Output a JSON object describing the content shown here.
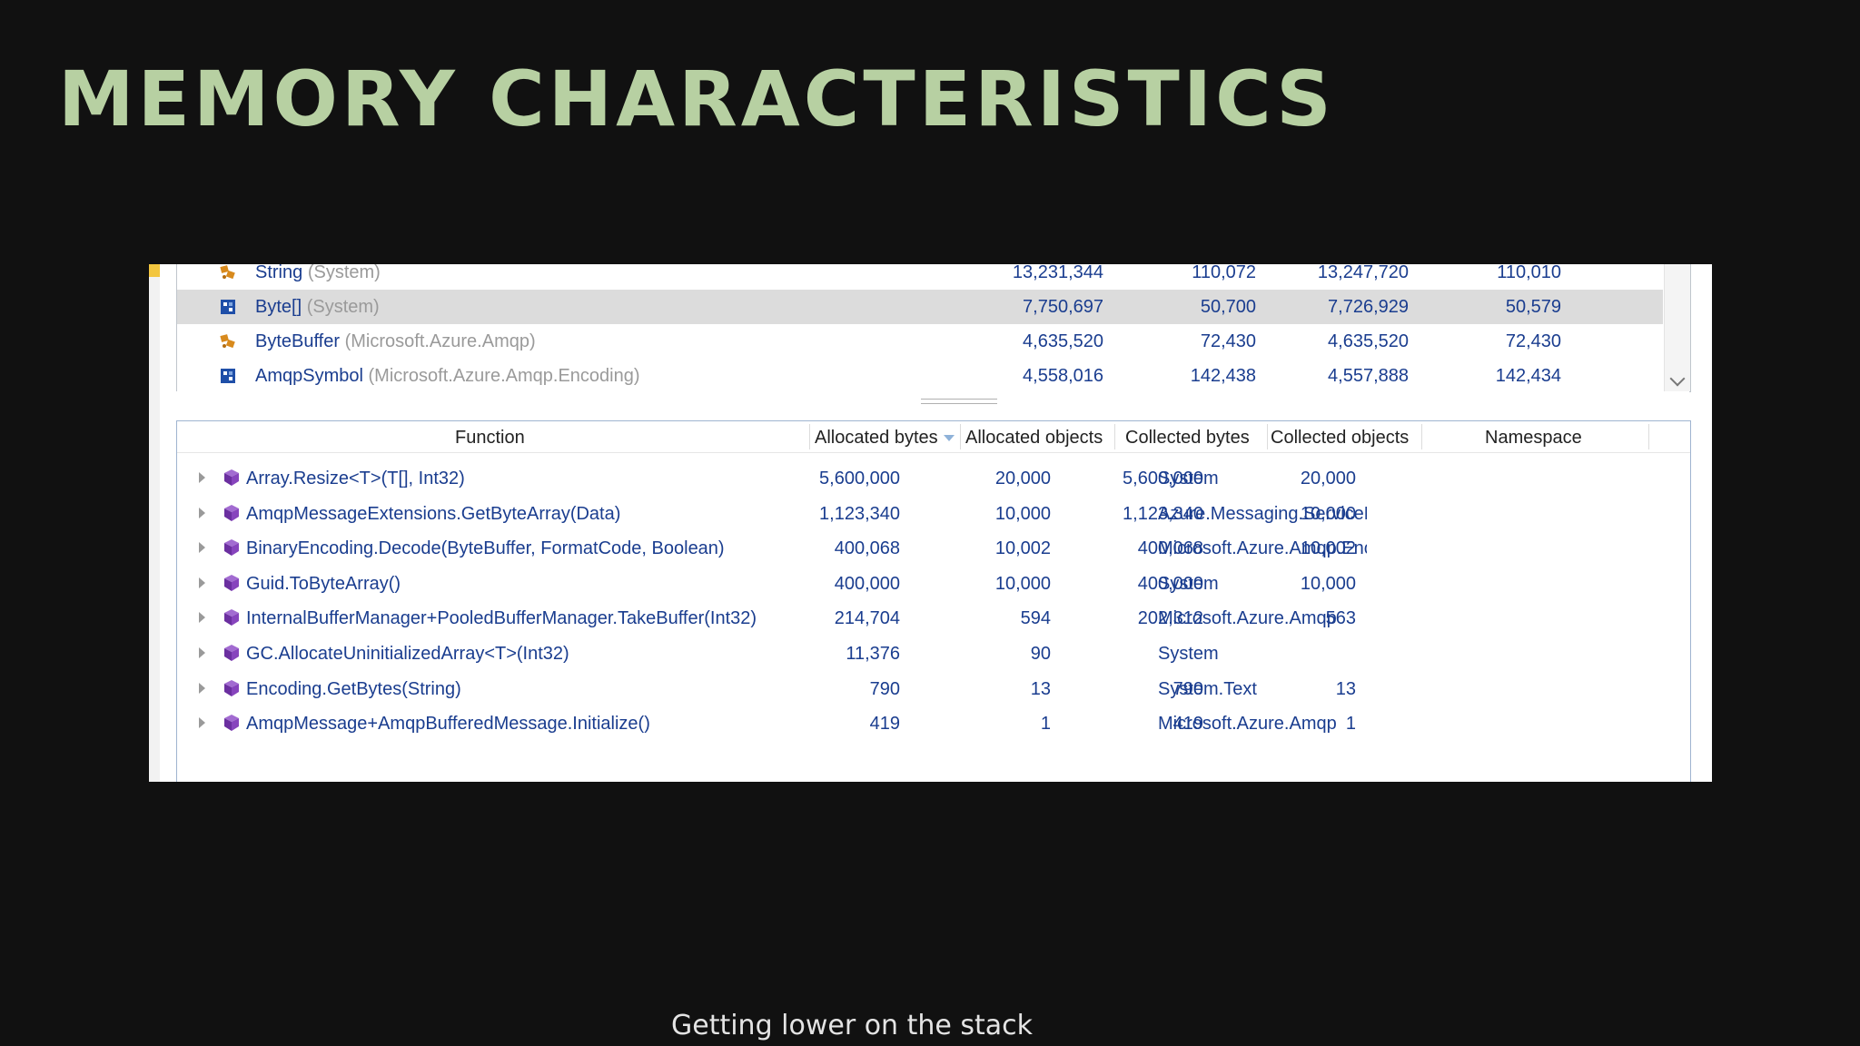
{
  "slide": {
    "title": "MEMORY CHARACTERISTICS",
    "caption": "Getting lower on the stack"
  },
  "colors": {
    "title": "#b7d0a2",
    "background": "#111111",
    "link_text": "#1a3d8f",
    "namespace_text": "#9a9a9a"
  },
  "types_table": {
    "rows": [
      {
        "icon": "string-type-icon",
        "name": "String",
        "ns": "(System)",
        "v1": "13,231,344",
        "v2": "110,072",
        "v3": "13,247,720",
        "v4": "110,010",
        "selected": false
      },
      {
        "icon": "struct-type-icon",
        "name": "Byte[]",
        "ns": "(System)",
        "v1": "7,750,697",
        "v2": "50,700",
        "v3": "7,726,929",
        "v4": "50,579",
        "selected": true
      },
      {
        "icon": "class-type-icon",
        "name": "ByteBuffer",
        "ns": "(Microsoft.Azure.Amqp)",
        "v1": "4,635,520",
        "v2": "72,430",
        "v3": "4,635,520",
        "v4": "72,430",
        "selected": false
      },
      {
        "icon": "struct-type-icon",
        "name": "AmqpSymbol",
        "ns": "(Microsoft.Azure.Amqp.Encoding)",
        "v1": "4,558,016",
        "v2": "142,438",
        "v3": "4,557,888",
        "v4": "142,434",
        "selected": false
      }
    ]
  },
  "functions_table": {
    "headers": {
      "function": "Function",
      "allocated_bytes": "Allocated bytes",
      "allocated_objects": "Allocated objects",
      "collected_bytes": "Collected bytes",
      "collected_objects": "Collected objects",
      "namespace": "Namespace"
    },
    "rows": [
      {
        "name": "Array.Resize<T>(T[], Int32)",
        "ab": "5,600,000",
        "ao": "20,000",
        "cb": "5,600,000",
        "co": "20,000",
        "ns": "System"
      },
      {
        "name": "AmqpMessageExtensions.GetByteArray(Data)",
        "ab": "1,123,340",
        "ao": "10,000",
        "cb": "1,123,340",
        "co": "10,000",
        "ns": "Azure.Messaging.ServiceBus"
      },
      {
        "name": "BinaryEncoding.Decode(ByteBuffer, FormatCode, Boolean)",
        "ab": "400,068",
        "ao": "10,002",
        "cb": "400,068",
        "co": "10,002",
        "ns": "Microsoft.Azure.Amqp.Encoding"
      },
      {
        "name": "Guid.ToByteArray()",
        "ab": "400,000",
        "ao": "10,000",
        "cb": "400,000",
        "co": "10,000",
        "ns": "System"
      },
      {
        "name": "InternalBufferManager+PooledBufferManager.TakeBuffer(Int32)",
        "ab": "214,704",
        "ao": "594",
        "cb": "202,312",
        "co": "563",
        "ns": "Microsoft.Azure.Amqp"
      },
      {
        "name": "GC.AllocateUninitializedArray<T>(Int32)",
        "ab": "11,376",
        "ao": "90",
        "cb": "",
        "co": "",
        "ns": "System"
      },
      {
        "name": "Encoding.GetBytes(String)",
        "ab": "790",
        "ao": "13",
        "cb": "790",
        "co": "13",
        "ns": "System.Text"
      },
      {
        "name": "AmqpMessage+AmqpBufferedMessage.Initialize()",
        "ab": "419",
        "ao": "1",
        "cb": "419",
        "co": "1",
        "ns": "Microsoft.Azure.Amqp"
      }
    ]
  }
}
